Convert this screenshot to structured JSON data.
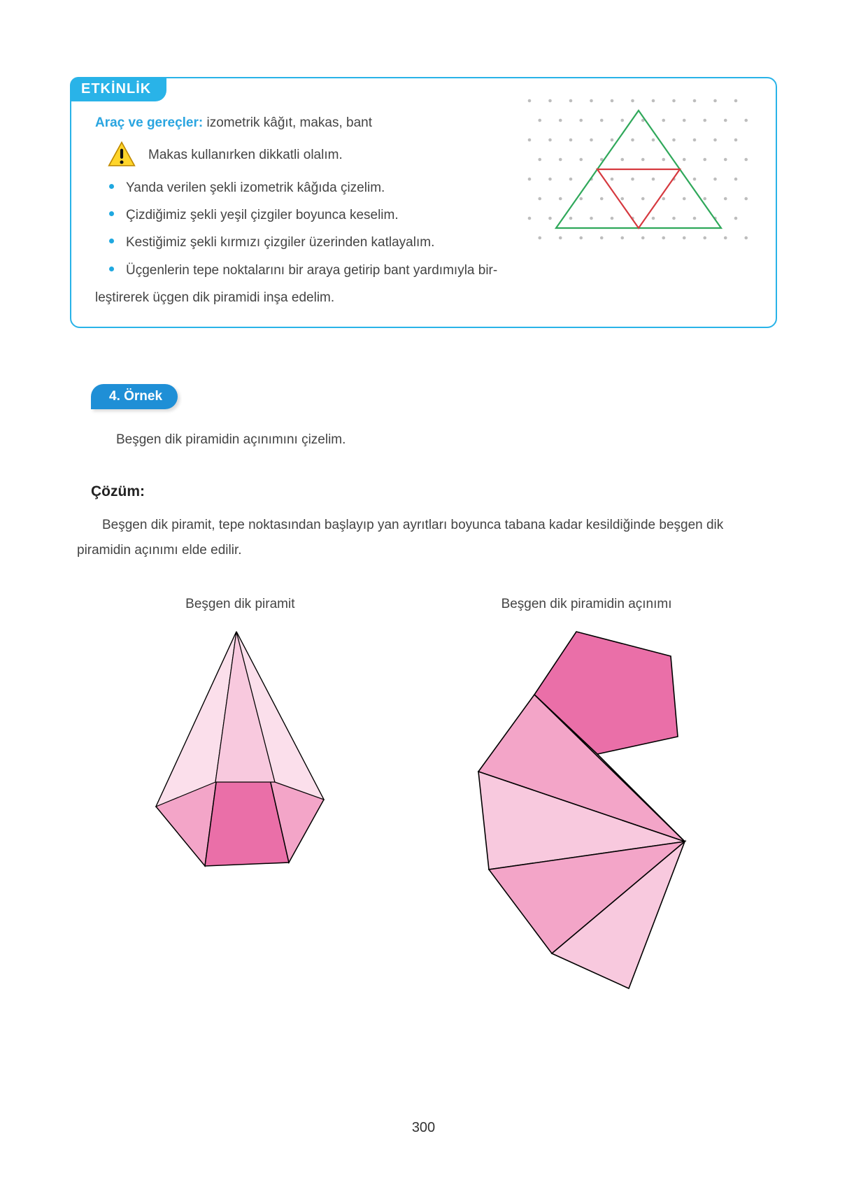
{
  "activity": {
    "tab": "ETKİNLİK",
    "materials_label": "Araç ve gereçler:",
    "materials": " izometrik kâğıt, makas, bant",
    "warning": "Makas kullanırken dikkatli olalım.",
    "bullets": [
      "Yanda verilen şekli izometrik kâğıda çizelim.",
      "Çizdiğimiz şekli yeşil çizgiler boyunca keselim.",
      "Kestiğimiz şekli kırmızı çizgiler üzerinden katlayalım.",
      "Üçgenlerin tepe noktalarını bir araya getirip bant yardımıyla bir-"
    ],
    "bullets_cont": "leştirerek üçgen dik piramidi inşa edelim.",
    "iso_grid": {
      "dot_color": "#bdbdbd",
      "outer_triangle_color": "#2fa85a",
      "inner_triangle_color": "#d6393f"
    }
  },
  "example": {
    "badge": "4. Örnek",
    "prompt": "Beşgen dik piramidin açınımını çizelim.",
    "solution_label": "Çözüm:",
    "solution_text": "Beşgen dik piramit, tepe noktasından başlayıp yan ayrıtları boyunca tabana kadar kesildiğinde beşgen dik piramidin açınımı elde edilir.",
    "left_label": "Beşgen dik piramit",
    "right_label": "Beşgen dik piramidin açınımı",
    "colors": {
      "face_dark": "#ea6fa8",
      "face_mid": "#f3a5c8",
      "face_light": "#f8c9de",
      "face_vlight": "#fbdfeb",
      "stroke": "#000000"
    }
  },
  "page_number": "300"
}
